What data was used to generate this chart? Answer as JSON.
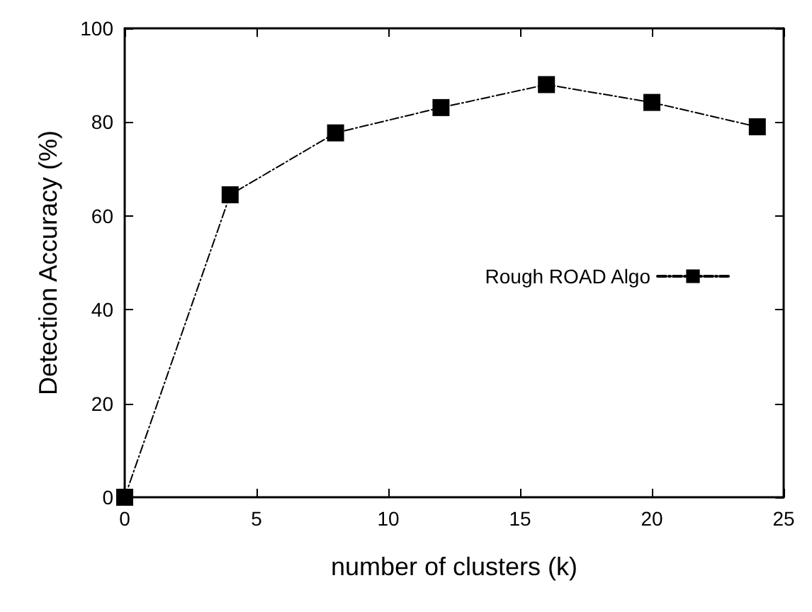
{
  "chart_data": {
    "type": "line",
    "xlabel": "number of clusters (k)",
    "ylabel": "Detection Accuracy (%)",
    "x": [
      0,
      4,
      8,
      12,
      16,
      20,
      24
    ],
    "series": [
      {
        "name": "Rough ROAD Algo",
        "color": "#000000",
        "values": [
          0,
          64.5,
          77.7,
          83.1,
          88.0,
          84.2,
          79.0
        ]
      }
    ],
    "xlim": [
      0,
      25
    ],
    "xticks": [
      0,
      5,
      10,
      15,
      20,
      25
    ],
    "ylim": [
      0,
      100
    ],
    "yticks": [
      0,
      20,
      40,
      60,
      80,
      100
    ],
    "grid": false,
    "legend": "right",
    "marker": "square",
    "line_style": "dashed"
  }
}
